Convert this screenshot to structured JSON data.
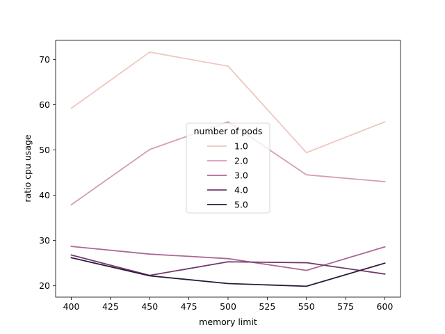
{
  "chart_data": {
    "type": "line",
    "xlabel": "memory limit",
    "ylabel": "ratio cpu usage",
    "x": [
      400,
      450,
      500,
      550,
      600
    ],
    "xticks": [
      400,
      425,
      450,
      475,
      500,
      525,
      550,
      575,
      600
    ],
    "yticks": [
      20,
      30,
      40,
      50,
      60,
      70
    ],
    "xlim": [
      390,
      610
    ],
    "ylim": [
      17.5,
      74.2
    ],
    "grid": false,
    "legend": {
      "title": "number of pods",
      "placement": "center"
    },
    "series": [
      {
        "name": "1.0",
        "color": "#ecc8c0",
        "values": [
          59.2,
          71.6,
          68.5,
          49.4,
          56.2
        ]
      },
      {
        "name": "2.0",
        "color": "#d59db2",
        "values": [
          37.9,
          50.1,
          56.2,
          44.5,
          43.0
        ]
      },
      {
        "name": "3.0",
        "color": "#aa6892",
        "values": [
          28.7,
          27.0,
          26.0,
          23.4,
          28.6
        ]
      },
      {
        "name": "4.0",
        "color": "#723a6c",
        "values": [
          26.8,
          22.3,
          25.3,
          25.1,
          22.6
        ]
      },
      {
        "name": "5.0",
        "color": "#2b1a3b",
        "values": [
          26.2,
          22.2,
          20.5,
          19.9,
          25.0
        ]
      }
    ]
  }
}
